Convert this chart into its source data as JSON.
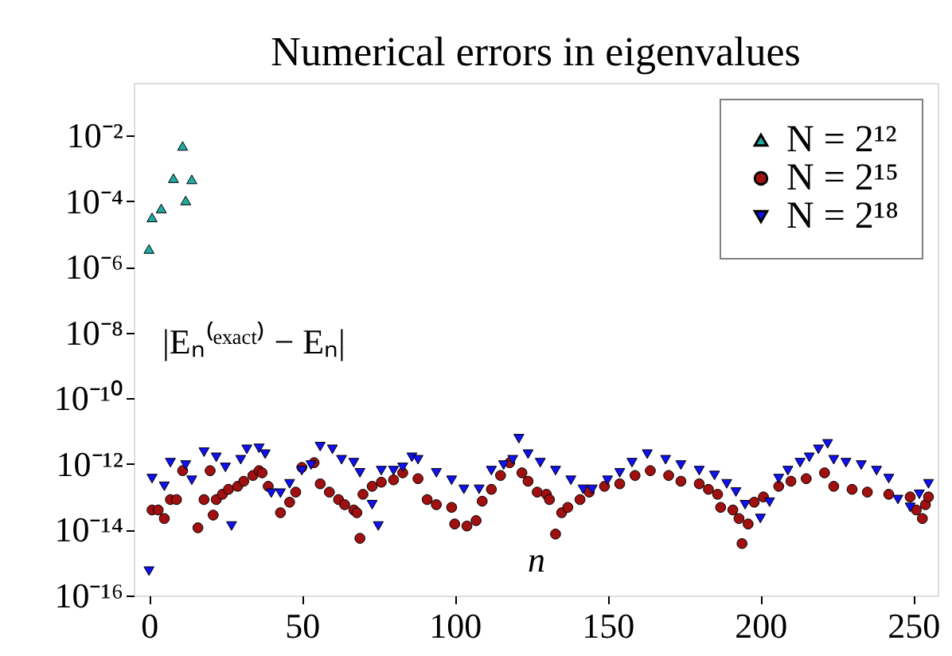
{
  "chart_data": {
    "type": "scatter",
    "title": "Numerical errors in eigenvalues",
    "xlabel": "n",
    "ylabel": "|Eₙ⁽ᵉˣᵃᶜᵗ⁾ − Eₙ|",
    "log": "y",
    "grid": false,
    "legend": "top right",
    "xlim": [
      -5,
      258
    ],
    "xticks": [
      0,
      50,
      100,
      150,
      200,
      250
    ],
    "ylim": [
      1e-16,
      0.4
    ],
    "yticks": [
      {
        "value": 1e-16,
        "label": "10⁻¹⁶"
      },
      {
        "value": 1e-14,
        "label": "10⁻¹⁴"
      },
      {
        "value": 1e-12,
        "label": "10⁻¹²"
      },
      {
        "value": 1e-10,
        "label": "10⁻¹⁰"
      },
      {
        "value": 1e-08,
        "label": "10⁻⁸"
      },
      {
        "value": 1e-06,
        "label": "10⁻⁶"
      },
      {
        "value": 0.0001,
        "label": "10⁻⁴"
      },
      {
        "value": 0.01,
        "label": "10⁻²"
      }
    ],
    "series": [
      {
        "name": "N = 2¹²",
        "color": "#20aaa0",
        "marker": "triangle",
        "x": [
          0,
          1,
          4,
          8,
          11,
          12,
          14
        ],
        "values": [
          3.5e-06,
          3.2e-05,
          6e-05,
          0.0005,
          0.0048,
          0.000105,
          0.00046
        ]
      },
      {
        "name": "N = 2¹⁵",
        "color": "#a01010",
        "marker": "circle",
        "x": [
          1,
          3,
          5,
          7,
          9,
          11,
          16,
          18,
          20,
          21,
          22,
          24,
          26,
          29,
          31,
          34,
          36,
          37,
          39,
          43,
          46,
          48,
          50,
          54,
          56,
          59,
          62,
          64,
          67,
          68,
          69,
          70,
          73,
          76,
          80,
          83,
          88,
          91,
          94,
          99,
          100,
          104,
          107,
          109,
          112,
          115,
          118,
          122,
          124,
          127,
          130,
          131,
          133,
          135,
          137,
          141,
          144,
          149,
          154,
          159,
          164,
          170,
          174,
          180,
          183,
          186,
          187,
          191,
          193,
          194,
          196,
          198,
          201,
          206,
          210,
          215,
          221,
          224,
          230,
          235,
          242,
          249,
          251,
          253,
          254,
          255
        ],
        "values": [
          4e-14,
          4e-14,
          2.2e-14,
          8.3e-14,
          8.3e-14,
          6.3e-13,
          1.15e-14,
          8.3e-14,
          6.3e-13,
          2.8e-14,
          8.3e-14,
          1.2e-13,
          1.7e-13,
          2.1e-13,
          3e-13,
          4.5e-13,
          6.3e-13,
          5.4e-13,
          2.1e-13,
          3.3e-14,
          6.9e-14,
          1.4e-13,
          7.9e-13,
          1.1e-12,
          2.5e-13,
          1.4e-13,
          8.3e-14,
          5.8e-14,
          4e-14,
          3.3e-14,
          5.5e-15,
          1.2e-13,
          2.1e-13,
          2.8e-13,
          3.3e-13,
          5.4e-13,
          3.6e-13,
          8.3e-14,
          5.8e-14,
          4.8e-14,
          1.5e-14,
          1.3e-14,
          1.9e-14,
          7.4e-14,
          1.7e-13,
          4.5e-13,
          1.1e-12,
          5.4e-13,
          3e-13,
          1.4e-13,
          1.2e-13,
          8.3e-14,
          7.4e-15,
          3.3e-14,
          4.8e-14,
          8.3e-14,
          1.4e-13,
          2.1e-13,
          2.5e-13,
          4.5e-13,
          6.3e-13,
          4.5e-13,
          3e-13,
          2.5e-13,
          1.7e-13,
          1.2e-13,
          4.8e-14,
          4e-14,
          2.2e-14,
          3.8e-15,
          1.5e-14,
          6.9e-14,
          1e-13,
          2.1e-13,
          3e-13,
          3.6e-13,
          5.4e-13,
          2.1e-13,
          1.7e-13,
          1.4e-13,
          1.2e-13,
          1e-13,
          4e-14,
          2.2e-14,
          5.8e-14,
          1e-13
        ]
      },
      {
        "name": "N = 2¹⁸",
        "color": "#1010f0",
        "marker": "triangle-down",
        "x": [
          0,
          1,
          5,
          7,
          12,
          14,
          18,
          22,
          25,
          27,
          30,
          32,
          36,
          38,
          40,
          43,
          46,
          50,
          53,
          56,
          60,
          63,
          67,
          69,
          73,
          75,
          76,
          80,
          83,
          86,
          88,
          94,
          99,
          103,
          108,
          112,
          116,
          119,
          121,
          124,
          128,
          133,
          138,
          142,
          145,
          150,
          154,
          158,
          163,
          169,
          174,
          180,
          185,
          189,
          192,
          195,
          200,
          203,
          206,
          209,
          213,
          216,
          219,
          222,
          224,
          228,
          233,
          238,
          242,
          245,
          249,
          252,
          255
        ],
        "values": [
          5.5e-16,
          3.6e-13,
          2.1e-13,
          1.1e-12,
          9.3e-13,
          3.2e-13,
          2.3e-12,
          1.6e-12,
          7.9e-13,
          1.3e-14,
          1.35e-12,
          2.8e-12,
          3e-12,
          2e-12,
          1.3e-13,
          1.3e-13,
          2.5e-13,
          6.3e-13,
          9.3e-13,
          3.4e-12,
          2.8e-12,
          1.35e-12,
          1.1e-12,
          5.4e-13,
          5.8e-14,
          1.3e-14,
          6.3e-13,
          6.3e-13,
          7.9e-13,
          1.6e-12,
          1.35e-12,
          5.4e-13,
          3.2e-13,
          1.7e-13,
          1.7e-13,
          6.3e-13,
          9.3e-13,
          1.35e-12,
          5.9e-12,
          2e-12,
          1.1e-12,
          6.3e-13,
          3.2e-13,
          1.7e-13,
          1.7e-13,
          3.2e-13,
          5.4e-13,
          1.1e-12,
          2e-12,
          1.35e-12,
          9.3e-13,
          6.3e-13,
          4.5e-13,
          2.5e-13,
          1.4e-13,
          5.8e-14,
          2.2e-14,
          6.9e-14,
          3.6e-13,
          6.3e-13,
          1.1e-12,
          1.6e-12,
          2.8e-12,
          4.1e-12,
          1.35e-12,
          1.1e-12,
          9.3e-13,
          6.3e-13,
          3.6e-13,
          8.3e-14,
          4.8e-14,
          1.2e-13,
          2.5e-13
        ]
      }
    ]
  }
}
